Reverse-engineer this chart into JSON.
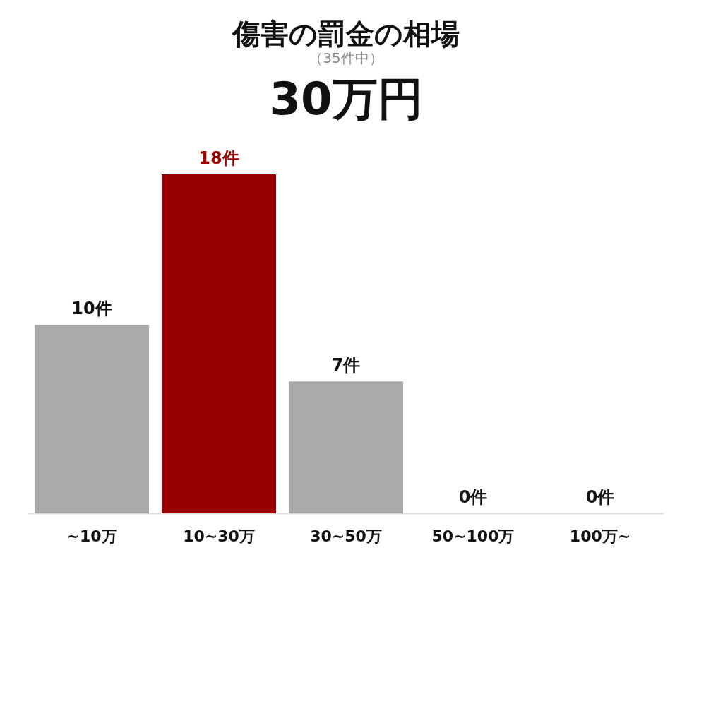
{
  "chart_data": {
    "type": "bar",
    "title": "傷害の罰金の相場",
    "subtitle": "（35件中）",
    "annotations": [
      "30万円"
    ],
    "categories": [
      "~10万",
      "10~30万",
      "30~50万",
      "50~100万",
      "100万~"
    ],
    "values": [
      10,
      18,
      7,
      0,
      0
    ],
    "colors": [
      "#aaaaaa",
      "#990000",
      "#aaaaaa",
      "#aaaaaa",
      "#aaaaaa"
    ],
    "value_labels": [
      "10件",
      "18件",
      "7件",
      "0件",
      "0件"
    ],
    "tick_labels": "x",
    "grid": false
  }
}
